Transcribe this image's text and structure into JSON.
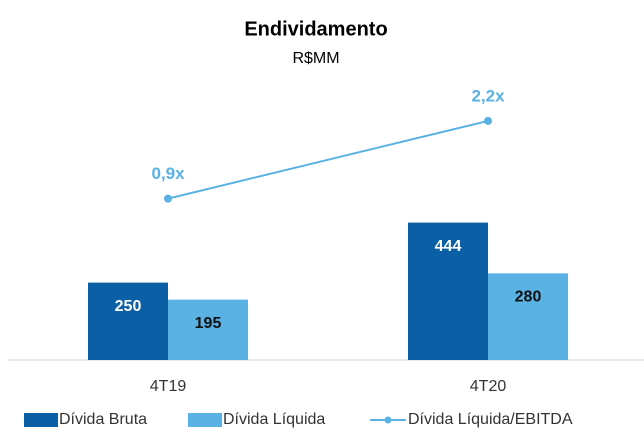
{
  "chart_data": {
    "type": "bar_line",
    "title": "Endividamento",
    "subtitle": "R$MM",
    "categories": [
      "4T19",
      "4T20"
    ],
    "series": [
      {
        "name": "Dívida Bruta",
        "type": "bar",
        "color": "#0b5fa5",
        "values": [
          250,
          444
        ]
      },
      {
        "name": "Dívida Líquida",
        "type": "bar",
        "color": "#5ab1e4",
        "values": [
          195,
          280
        ]
      },
      {
        "name": "Dívida Líquida/EBITDA",
        "type": "line",
        "axis": "y2",
        "color": "#5ab1e4",
        "values": [
          0.9,
          2.2
        ],
        "value_labels": [
          "0,9x",
          "2,2x"
        ]
      }
    ],
    "ylim": [
      0,
      840
    ],
    "y2lim": [
      -1.8,
      2.55
    ],
    "legend": "bottom"
  }
}
